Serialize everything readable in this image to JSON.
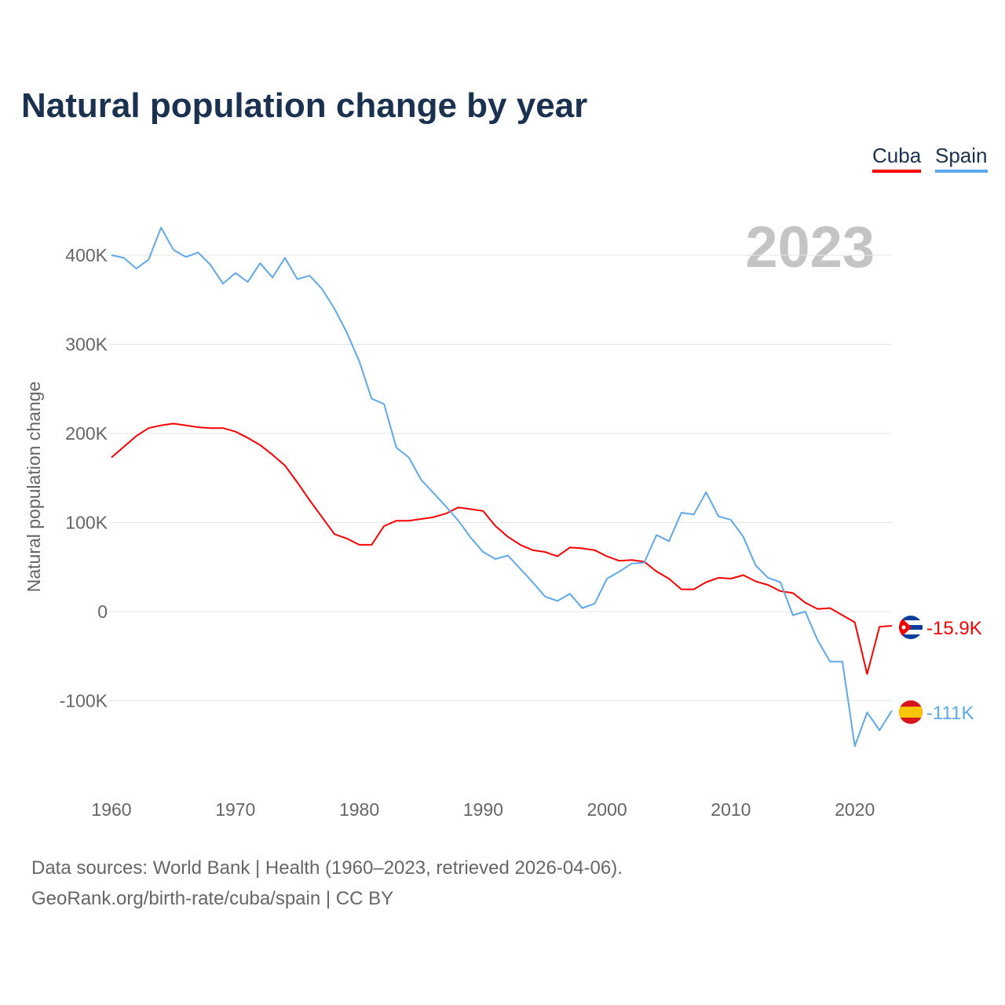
{
  "title": "Natural population change by year",
  "legend": [
    {
      "label": "Cuba",
      "color": "#ff0000"
    },
    {
      "label": "Spain",
      "color": "#5ea8ec"
    }
  ],
  "year_watermark": "2023",
  "footer": {
    "line1": "Data sources: World Bank | Health (1960–2023, retrieved 2026-04-06).",
    "line2": "GeoRank.org/birth-rate/cuba/spain | CC BY"
  },
  "chart_data": {
    "type": "line",
    "title": "Natural population change by year",
    "xlabel": "",
    "ylabel": "Natural population change",
    "xlim": [
      1960,
      2023
    ],
    "ylim": [
      -180000,
      440000
    ],
    "x_ticks": [
      "1960",
      "1970",
      "1980",
      "1990",
      "2000",
      "2010",
      "2020"
    ],
    "y_ticks": [
      {
        "v": 400000,
        "label": "400K"
      },
      {
        "v": 300000,
        "label": "300K"
      },
      {
        "v": 200000,
        "label": "200K"
      },
      {
        "v": 100000,
        "label": "100K"
      },
      {
        "v": 0,
        "label": "0"
      },
      {
        "v": -100000,
        "label": "-100K"
      }
    ],
    "grid": true,
    "legend_position": "top-right",
    "x_start": 1960,
    "series": [
      {
        "name": "Cuba",
        "color": "#ff0000",
        "end_label": "-15.9K",
        "flag": "cuba",
        "values": [
          173,
          185,
          197,
          206,
          209,
          211,
          209,
          207,
          206,
          206,
          202,
          195,
          187,
          176,
          164,
          145,
          125,
          106,
          87,
          82,
          75,
          75,
          96,
          102,
          102,
          104,
          106,
          110,
          117,
          115,
          113,
          96,
          84,
          75,
          69,
          67,
          62,
          72,
          71,
          69,
          62,
          57,
          58,
          56,
          45,
          37,
          25,
          25,
          33,
          38,
          37,
          41,
          34,
          30,
          23,
          21,
          10,
          3,
          4,
          -4,
          -12,
          -70,
          -17,
          -15.9
        ]
      },
      {
        "name": "Spain",
        "color": "#5ea8ec",
        "end_label": "-111K",
        "flag": "spain",
        "values": [
          400,
          397,
          385,
          395,
          431,
          406,
          398,
          403,
          389,
          368,
          380,
          370,
          391,
          375,
          397,
          373,
          377,
          362,
          340,
          313,
          281,
          239,
          233,
          184,
          173,
          148,
          133,
          118,
          102,
          83,
          67,
          59,
          63,
          48,
          33,
          17,
          12,
          20,
          4,
          9,
          37,
          45,
          54,
          55,
          86,
          79,
          111,
          109,
          134,
          107,
          103,
          84,
          52,
          38,
          33,
          -4,
          0,
          -32,
          -56,
          -56,
          -151,
          -113,
          -133,
          -111
        ]
      }
    ],
    "value_unit": "thousands"
  }
}
